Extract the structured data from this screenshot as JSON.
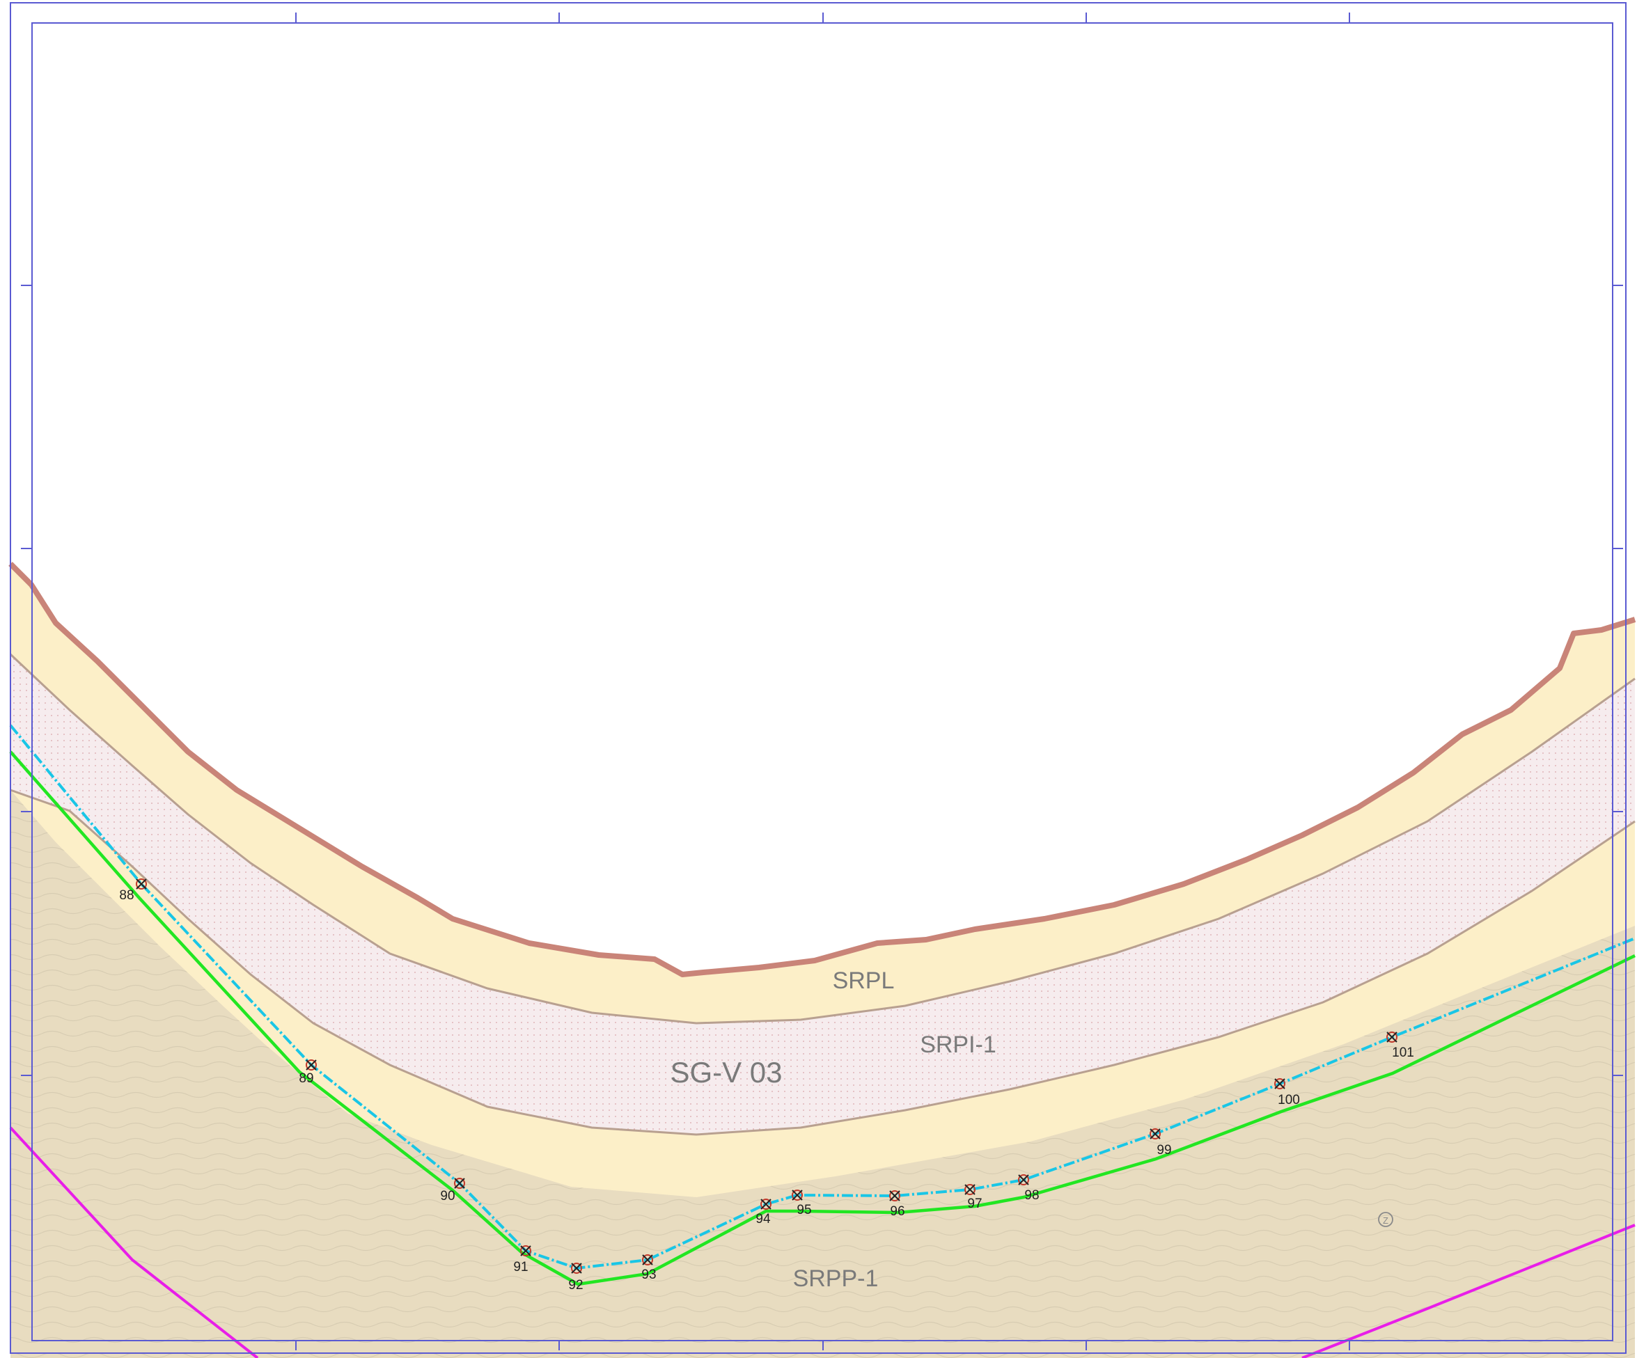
{
  "map": {
    "zones": [
      {
        "id": "srpl",
        "label": "SRPL"
      },
      {
        "id": "sg-v-03",
        "label": "SG-V 03"
      },
      {
        "id": "srpi-1",
        "label": "SRPI-1"
      },
      {
        "id": "srpp-1",
        "label": "SRPP-1"
      }
    ],
    "markers": [
      "88",
      "89",
      "90",
      "91",
      "92",
      "93",
      "94",
      "95",
      "96",
      "97",
      "98",
      "99",
      "100",
      "101"
    ],
    "symbol": "Z",
    "colors": {
      "sand": "#fcefc8",
      "terrain": "#e8dcc0",
      "band_fill": "#f6ecee",
      "coast_line": "#c98478",
      "band_edge": "#b8a090",
      "boundary_cyan": "#19c6e6",
      "boundary_green": "#22e622",
      "road_magenta": "#e81ee8",
      "frame_blue": "#5a5ad2",
      "marker_red": "#c0392b"
    }
  }
}
